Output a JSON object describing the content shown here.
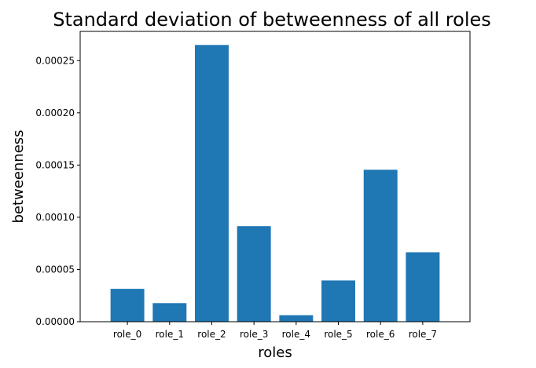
{
  "chart_data": {
    "type": "bar",
    "title": "Standard deviation of betweenness of all roles",
    "xlabel": "roles",
    "ylabel": "betweenness",
    "categories": [
      "role_0",
      "role_1",
      "role_2",
      "role_3",
      "role_4",
      "role_5",
      "role_6",
      "role_7"
    ],
    "values": [
      3.15e-05,
      1.78e-05,
      0.000265,
      9.15e-05,
      6.2e-06,
      3.95e-05,
      0.0001455,
      6.65e-05
    ],
    "ylim": [
      0,
      0.000278
    ],
    "yticks": [
      0,
      5e-05,
      0.0001,
      0.00015,
      0.0002,
      0.00025
    ],
    "ytick_labels": [
      "0.00000",
      "0.00005",
      "0.00010",
      "0.00015",
      "0.00020",
      "0.00025"
    ],
    "bar_color": "#1f77b4",
    "grid": false,
    "legend": "none"
  }
}
